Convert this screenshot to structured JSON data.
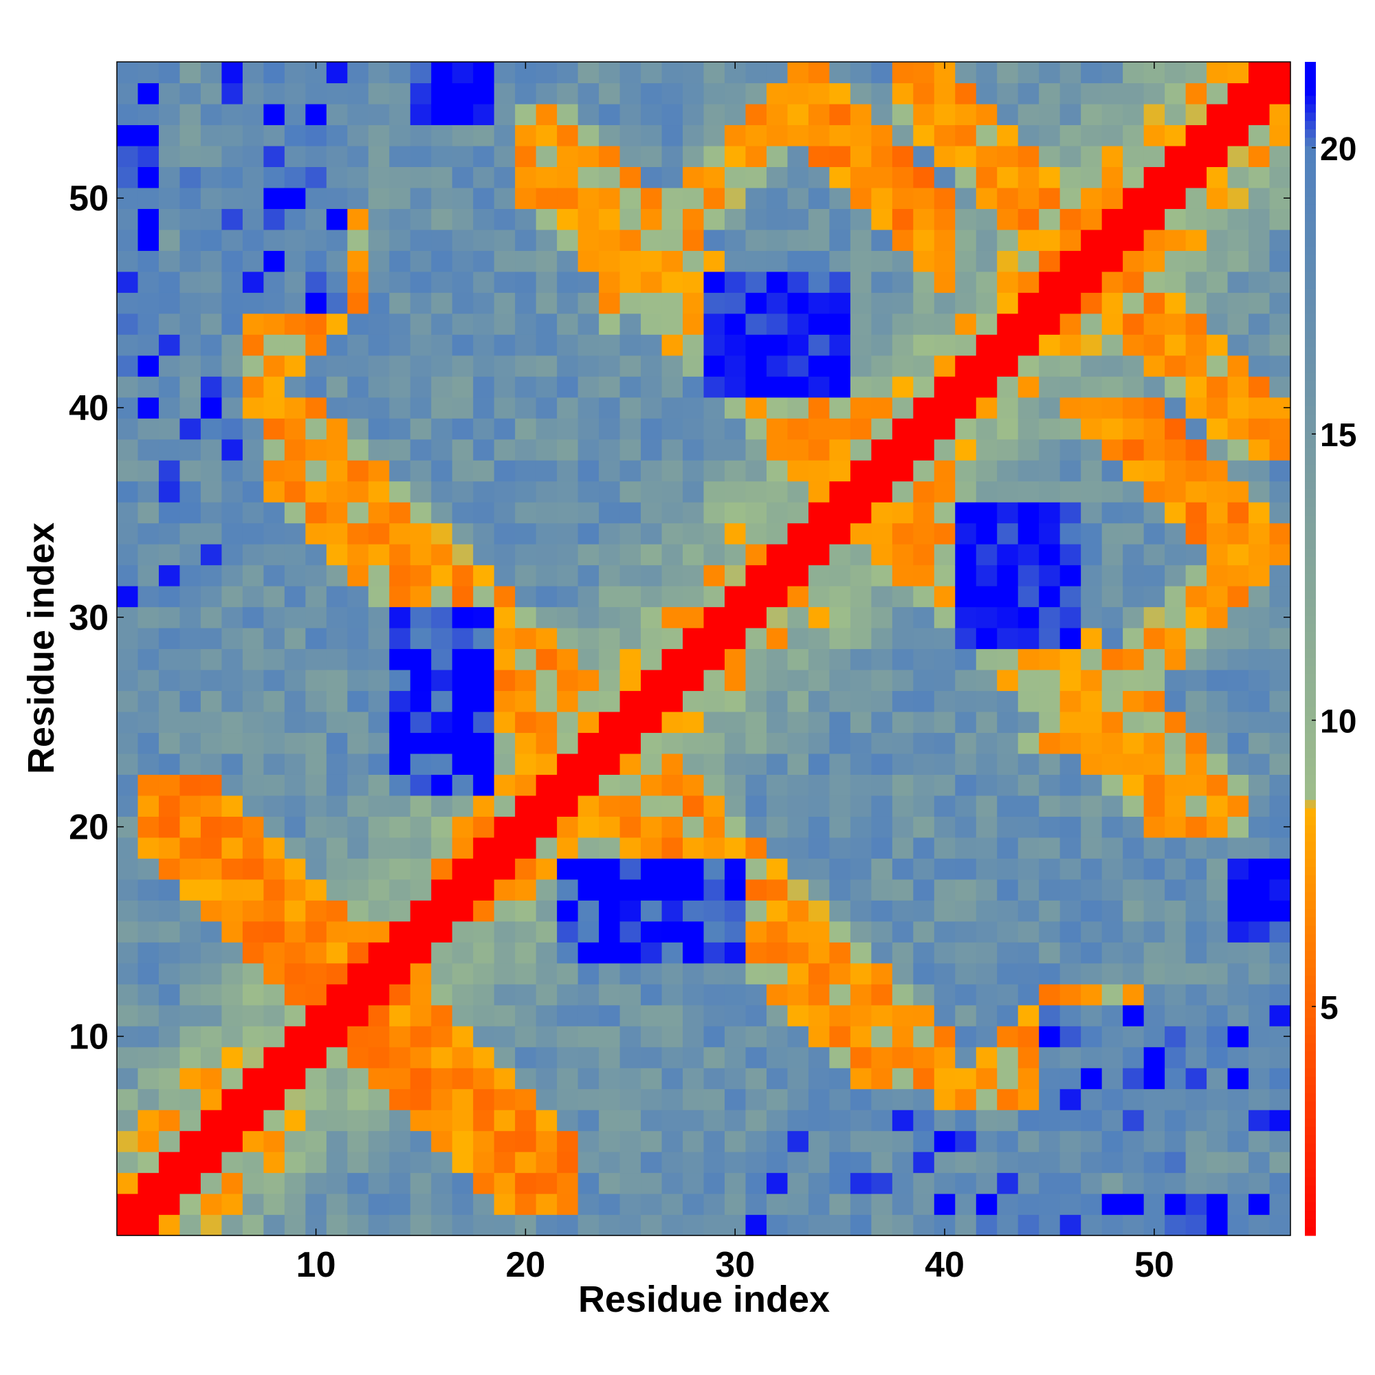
{
  "chart_data": {
    "type": "heatmap",
    "title": "",
    "xlabel": "Residue index",
    "ylabel": "Residue index",
    "n_residues": 56,
    "xlim": [
      0.5,
      56.5
    ],
    "ylim": [
      0.5,
      56.5
    ],
    "x_ticks": [
      10,
      20,
      30,
      40,
      50
    ],
    "y_ticks": [
      10,
      20,
      30,
      40,
      50
    ],
    "colorbar": {
      "range": [
        1,
        21.5
      ],
      "ticks": [
        5,
        10,
        15,
        20
      ],
      "stops": [
        {
          "value": 1,
          "color": "#ff0000"
        },
        {
          "value": 4.8,
          "color": "#ff6000"
        },
        {
          "value": 8.5,
          "color": "#ffb000"
        },
        {
          "value": 8.6,
          "color": "#9ebd8a"
        },
        {
          "value": 14,
          "color": "#7c9ea0"
        },
        {
          "value": 20,
          "color": "#5080bf"
        },
        {
          "value": 21,
          "color": "#0000ff"
        }
      ]
    },
    "grid": false,
    "legend": "none"
  }
}
